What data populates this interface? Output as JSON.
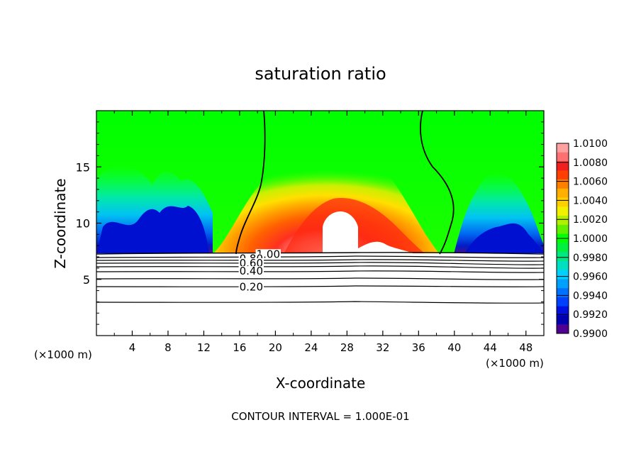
{
  "chart_data": {
    "type": "heatmap",
    "title": "saturation ratio",
    "xlabel": "X-coordinate",
    "ylabel": "Z-coordinate",
    "x_unit_left": "(×1000 m)",
    "x_unit_right": "(×1000 m)",
    "xlim": [
      0,
      50
    ],
    "ylim": [
      0,
      20
    ],
    "x_ticks": [
      4,
      8,
      12,
      16,
      20,
      24,
      28,
      32,
      36,
      40,
      44,
      48
    ],
    "y_ticks": [
      5,
      10,
      15
    ],
    "colorbar": {
      "min": 0.99,
      "max": 1.01,
      "labels": [
        "1.0100",
        "1.0080",
        "1.0060",
        "1.0040",
        "1.0020",
        "1.0000",
        "0.9980",
        "0.9960",
        "0.9940",
        "0.9920",
        "0.9900"
      ],
      "colors": [
        "#ffa0a0",
        "#ff7070",
        "#f02020",
        "#ff4000",
        "#ff8000",
        "#ffb000",
        "#ffd000",
        "#f0f000",
        "#b0f000",
        "#60f000",
        "#00ff00",
        "#00f040",
        "#00e880",
        "#00e0c0",
        "#00d0ff",
        "#00a0ff",
        "#0070ff",
        "#0040ff",
        "#0010e0",
        "#0000b0",
        "#500090"
      ]
    },
    "contour_labels": [
      {
        "text": "1.00",
        "x": 19.2,
        "z": 7.3
      },
      {
        "text": "0.80",
        "x": 17.3,
        "z": 6.9
      },
      {
        "text": "0.60",
        "x": 17.3,
        "z": 6.5
      },
      {
        "text": "0.40",
        "x": 17.3,
        "z": 5.8
      },
      {
        "text": "0.20",
        "x": 17.3,
        "z": 4.4
      }
    ],
    "contour_interval_text": "CONTOUR INTERVAL = 1.000E-01",
    "grid": false,
    "legend": "right colorbar"
  }
}
